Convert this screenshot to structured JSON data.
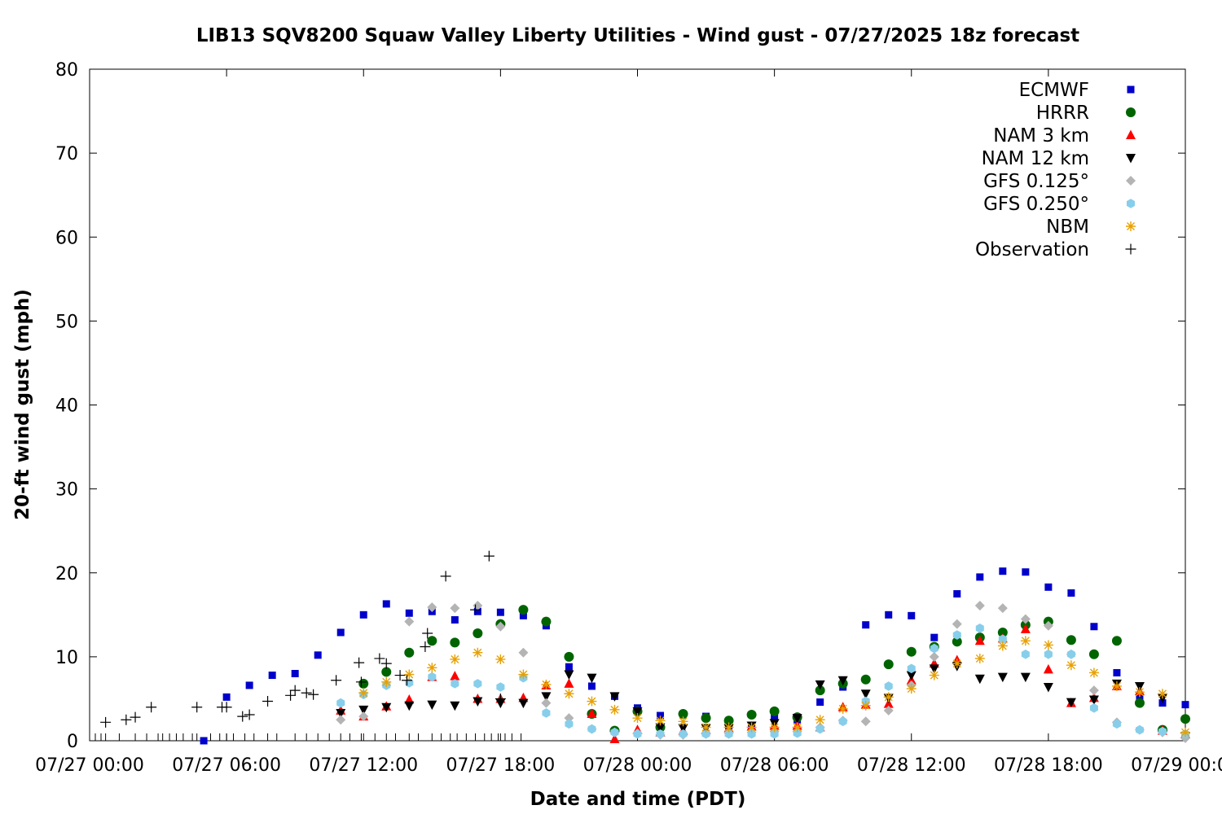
{
  "chart_data": {
    "type": "scatter",
    "title": "LIB13 SQV8200 Squaw Valley Liberty Utilities - Wind gust - 07/27/2025 18z forecast",
    "xlabel": "Date and time (PDT)",
    "ylabel": "20-ft wind gust (mph)",
    "ylim": [
      0,
      80
    ],
    "yticks": [
      "0",
      "10",
      "20",
      "30",
      "40",
      "50",
      "60",
      "70",
      "80"
    ],
    "xlim_hours": [
      0,
      48
    ],
    "xticks": [
      {
        "label": "07/27 00:00",
        "hour": 0
      },
      {
        "label": "07/27 06:00",
        "hour": 6
      },
      {
        "label": "07/27 12:00",
        "hour": 12
      },
      {
        "label": "07/27 18:00",
        "hour": 18
      },
      {
        "label": "07/28 00:00",
        "hour": 24
      },
      {
        "label": "07/28 06:00",
        "hour": 30
      },
      {
        "label": "07/28 12:00",
        "hour": 36
      },
      {
        "label": "07/28 18:00",
        "hour": 42
      },
      {
        "label": "07/29 00:00",
        "hour": 48
      }
    ],
    "grid": false,
    "legend_position": "top-right",
    "series": [
      {
        "name": "ECMWF",
        "marker": "square",
        "color": "#0000cc",
        "points": [
          [
            5,
            0
          ],
          [
            6,
            5.2
          ],
          [
            7,
            6.6
          ],
          [
            8,
            7.8
          ],
          [
            9,
            8
          ],
          [
            10,
            10.2
          ],
          [
            11,
            12.9
          ],
          [
            12,
            15
          ],
          [
            13,
            16.3
          ],
          [
            14,
            15.2
          ],
          [
            15,
            15.4
          ],
          [
            16,
            14.4
          ],
          [
            17,
            15.4
          ],
          [
            18,
            15.3
          ],
          [
            19,
            14.9
          ],
          [
            20,
            13.7
          ],
          [
            21,
            8.8
          ],
          [
            22,
            6.5
          ],
          [
            23,
            5.3
          ],
          [
            24,
            3.9
          ],
          [
            25,
            3
          ],
          [
            26,
            3.1
          ],
          [
            27,
            2.9
          ],
          [
            28,
            1.8
          ],
          [
            29,
            1.8
          ],
          [
            30,
            2.7
          ],
          [
            31,
            2.5
          ],
          [
            32,
            4.6
          ],
          [
            33,
            6.4
          ],
          [
            34,
            13.8
          ],
          [
            35,
            15
          ],
          [
            36,
            14.9
          ],
          [
            37,
            12.3
          ],
          [
            38,
            17.5
          ],
          [
            39,
            19.5
          ],
          [
            40,
            20.2
          ],
          [
            41,
            20.1
          ],
          [
            42,
            18.3
          ],
          [
            43,
            17.6
          ],
          [
            44,
            13.6
          ],
          [
            45,
            8.1
          ],
          [
            46,
            5
          ],
          [
            47,
            4.5
          ],
          [
            48,
            4.3
          ]
        ]
      },
      {
        "name": "HRRR",
        "marker": "circle",
        "color": "#006400",
        "points": [
          [
            12,
            6.8
          ],
          [
            13,
            8.2
          ],
          [
            14,
            10.5
          ],
          [
            15,
            11.9
          ],
          [
            16,
            11.7
          ],
          [
            17,
            12.8
          ],
          [
            18,
            13.9
          ],
          [
            19,
            15.6
          ],
          [
            20,
            14.2
          ],
          [
            21,
            10
          ],
          [
            22,
            3.2
          ],
          [
            23,
            1.2
          ],
          [
            24,
            3.5
          ],
          [
            25,
            1.6
          ],
          [
            26,
            3.2
          ],
          [
            27,
            2.7
          ],
          [
            28,
            2.4
          ],
          [
            29,
            3.1
          ],
          [
            30,
            3.5
          ],
          [
            31,
            2.8
          ],
          [
            32,
            6
          ],
          [
            33,
            6.8
          ],
          [
            34,
            7.3
          ],
          [
            35,
            9.1
          ],
          [
            36,
            10.6
          ],
          [
            37,
            11.2
          ],
          [
            38,
            11.8
          ],
          [
            39,
            12.3
          ],
          [
            40,
            12.9
          ],
          [
            41,
            13.8
          ],
          [
            42,
            14.2
          ],
          [
            43,
            12
          ],
          [
            44,
            10.3
          ],
          [
            45,
            11.9
          ],
          [
            46,
            4.5
          ],
          [
            47,
            1.3
          ],
          [
            48,
            2.6
          ]
        ]
      },
      {
        "name": "NAM 3 km",
        "marker": "triangle-up",
        "color": "#ff0000",
        "points": [
          [
            11,
            3.6
          ],
          [
            12,
            2.9
          ],
          [
            13,
            4.1
          ],
          [
            14,
            4.9
          ],
          [
            15,
            7.6
          ],
          [
            16,
            7.7
          ],
          [
            17,
            5
          ],
          [
            18,
            5
          ],
          [
            19,
            5.1
          ],
          [
            20,
            6.6
          ],
          [
            21,
            6.8
          ],
          [
            22,
            3.2
          ],
          [
            23,
            0.2
          ],
          [
            24,
            1.3
          ],
          [
            25,
            1
          ],
          [
            26,
            1.2
          ],
          [
            27,
            1.3
          ],
          [
            28,
            1.5
          ],
          [
            29,
            1.7
          ],
          [
            30,
            1.8
          ],
          [
            31,
            1.8
          ],
          [
            32,
            1.6
          ],
          [
            33,
            4
          ],
          [
            34,
            4.3
          ],
          [
            35,
            4.4
          ],
          [
            36,
            7.2
          ],
          [
            37,
            9.2
          ],
          [
            38,
            9.6
          ],
          [
            39,
            11.9
          ],
          [
            40,
            12.2
          ],
          [
            41,
            13.3
          ],
          [
            42,
            8.5
          ],
          [
            43,
            4.5
          ],
          [
            44,
            5.1
          ],
          [
            45,
            6.5
          ],
          [
            46,
            5.9
          ],
          [
            47,
            1.2
          ],
          [
            48,
            0.8
          ]
        ]
      },
      {
        "name": "NAM 12 km",
        "marker": "triangle-down",
        "color": "#000000",
        "points": [
          [
            11,
            3.3
          ],
          [
            12,
            3.7
          ],
          [
            13,
            4
          ],
          [
            14,
            4.2
          ],
          [
            15,
            4.3
          ],
          [
            16,
            4.2
          ],
          [
            17,
            4.7
          ],
          [
            18,
            4.5
          ],
          [
            19,
            4.5
          ],
          [
            20,
            5.3
          ],
          [
            21,
            7.9
          ],
          [
            22,
            7.5
          ],
          [
            23,
            5.3
          ],
          [
            24,
            3.5
          ],
          [
            25,
            1.6
          ],
          [
            26,
            1.5
          ],
          [
            27,
            1.5
          ],
          [
            28,
            1.5
          ],
          [
            29,
            1.8
          ],
          [
            30,
            2.1
          ],
          [
            31,
            2.7
          ],
          [
            32,
            6.7
          ],
          [
            33,
            7.2
          ],
          [
            34,
            5.6
          ],
          [
            35,
            5.1
          ],
          [
            36,
            7.8
          ],
          [
            37,
            8.6
          ],
          [
            38,
            8.9
          ],
          [
            39,
            7.4
          ],
          [
            40,
            7.6
          ],
          [
            41,
            7.6
          ],
          [
            42,
            6.4
          ],
          [
            43,
            4.6
          ],
          [
            44,
            4.9
          ],
          [
            45,
            6.8
          ],
          [
            46,
            6.5
          ],
          [
            47,
            5.1
          ],
          [
            48,
            0.5
          ]
        ]
      },
      {
        "name": "GFS 0.125°",
        "marker": "diamond",
        "color": "#b4b4b4",
        "points": [
          [
            11,
            2.5
          ],
          [
            12,
            2.9
          ],
          [
            13,
            6.6
          ],
          [
            14,
            14.2
          ],
          [
            15,
            15.9
          ],
          [
            16,
            15.8
          ],
          [
            17,
            16.1
          ],
          [
            18,
            13.6
          ],
          [
            19,
            10.5
          ],
          [
            20,
            4.5
          ],
          [
            21,
            2.7
          ],
          [
            22,
            1.4
          ],
          [
            23,
            1
          ],
          [
            24,
            0.9
          ],
          [
            25,
            0.7
          ],
          [
            26,
            0.7
          ],
          [
            27,
            0.8
          ],
          [
            28,
            0.9
          ],
          [
            29,
            1
          ],
          [
            30,
            1.1
          ],
          [
            31,
            1.1
          ],
          [
            32,
            1.6
          ],
          [
            33,
            2.4
          ],
          [
            34,
            2.3
          ],
          [
            35,
            3.6
          ],
          [
            36,
            6.6
          ],
          [
            37,
            10
          ],
          [
            38,
            13.9
          ],
          [
            39,
            16.1
          ],
          [
            40,
            15.8
          ],
          [
            41,
            14.5
          ],
          [
            42,
            13.7
          ],
          [
            43,
            10.3
          ],
          [
            44,
            6
          ],
          [
            45,
            2.2
          ],
          [
            46,
            1.3
          ],
          [
            47,
            1
          ],
          [
            48,
            0.3
          ]
        ]
      },
      {
        "name": "GFS 0.250°",
        "marker": "hexagon",
        "color": "#87ceeb",
        "points": [
          [
            11,
            4.5
          ],
          [
            12,
            5.5
          ],
          [
            13,
            6.6
          ],
          [
            14,
            6.9
          ],
          [
            15,
            7.6
          ],
          [
            16,
            6.8
          ],
          [
            17,
            6.8
          ],
          [
            18,
            6.4
          ],
          [
            19,
            7.5
          ],
          [
            20,
            3.3
          ],
          [
            21,
            2
          ],
          [
            22,
            1.4
          ],
          [
            23,
            1
          ],
          [
            24,
            0.8
          ],
          [
            25,
            0.8
          ],
          [
            26,
            0.8
          ],
          [
            27,
            0.8
          ],
          [
            28,
            0.8
          ],
          [
            29,
            0.8
          ],
          [
            30,
            0.8
          ],
          [
            31,
            0.9
          ],
          [
            32,
            1.4
          ],
          [
            33,
            2.3
          ],
          [
            34,
            4.7
          ],
          [
            35,
            6.5
          ],
          [
            36,
            8.6
          ],
          [
            37,
            11
          ],
          [
            38,
            12.6
          ],
          [
            39,
            13.4
          ],
          [
            40,
            12.1
          ],
          [
            41,
            10.3
          ],
          [
            42,
            10.3
          ],
          [
            43,
            10.3
          ],
          [
            44,
            3.9
          ],
          [
            45,
            2
          ],
          [
            46,
            1.3
          ],
          [
            47,
            1.1
          ],
          [
            48,
            0.8
          ]
        ]
      },
      {
        "name": "NBM",
        "marker": "star",
        "color": "#e8a000",
        "points": [
          [
            12,
            5.7
          ],
          [
            13,
            7
          ],
          [
            14,
            7.9
          ],
          [
            15,
            8.7
          ],
          [
            16,
            9.7
          ],
          [
            17,
            10.5
          ],
          [
            18,
            9.7
          ],
          [
            19,
            7.9
          ],
          [
            20,
            6.7
          ],
          [
            21,
            5.6
          ],
          [
            22,
            4.7
          ],
          [
            23,
            3.7
          ],
          [
            24,
            2.7
          ],
          [
            25,
            2.4
          ],
          [
            26,
            2.3
          ],
          [
            27,
            1.6
          ],
          [
            28,
            1.6
          ],
          [
            29,
            1.6
          ],
          [
            30,
            1.6
          ],
          [
            31,
            1.6
          ],
          [
            32,
            2.5
          ],
          [
            33,
            3.8
          ],
          [
            34,
            4.2
          ],
          [
            35,
            5.2
          ],
          [
            36,
            6.2
          ],
          [
            37,
            7.8
          ],
          [
            38,
            9.2
          ],
          [
            39,
            9.8
          ],
          [
            40,
            11.3
          ],
          [
            41,
            11.9
          ],
          [
            42,
            11.4
          ],
          [
            43,
            9
          ],
          [
            44,
            8.1
          ],
          [
            45,
            6.5
          ],
          [
            46,
            5.8
          ],
          [
            47,
            5.6
          ],
          [
            48,
            1
          ]
        ]
      },
      {
        "name": "Observation",
        "marker": "plus",
        "color": "#000000",
        "points": [
          [
            0.7,
            2.2
          ],
          [
            1.6,
            2.5
          ],
          [
            2,
            2.8
          ],
          [
            2.7,
            4
          ],
          [
            4.7,
            4
          ],
          [
            5.8,
            4
          ],
          [
            6,
            4
          ],
          [
            6.7,
            2.9
          ],
          [
            7,
            3.1
          ],
          [
            7.8,
            4.7
          ],
          [
            8.8,
            5.4
          ],
          [
            9,
            6
          ],
          [
            9.5,
            5.7
          ],
          [
            9.8,
            5.5
          ],
          [
            10.8,
            7.2
          ],
          [
            11.8,
            9.3
          ],
          [
            11.9,
            7
          ],
          [
            12.7,
            9.8
          ],
          [
            13,
            9.2
          ],
          [
            13.6,
            7.8
          ],
          [
            13.9,
            7.2
          ],
          [
            14.7,
            11.2
          ],
          [
            14.8,
            12.8
          ],
          [
            15.6,
            19.6
          ],
          [
            16.9,
            15.6
          ],
          [
            17.5,
            22
          ],
          [
            18,
            5
          ]
        ]
      }
    ],
    "observation_times_hours": [
      0.25,
      0.5,
      0.7,
      1.3,
      2,
      2.5,
      3,
      3.2,
      3.5,
      3.8,
      4.1,
      4.5,
      4.7,
      5.3,
      5.7,
      6,
      6.3,
      6.8,
      7.2,
      7.8,
      8.2,
      9,
      9.5,
      10,
      10.5,
      11,
      11.4,
      11.9,
      12.5,
      13,
      13.4,
      14,
      14.4,
      15,
      15.4,
      15.8,
      16.1,
      16.5,
      16.9,
      17.3,
      17.6,
      17.9,
      18.2,
      18.5,
      18.9
    ]
  }
}
